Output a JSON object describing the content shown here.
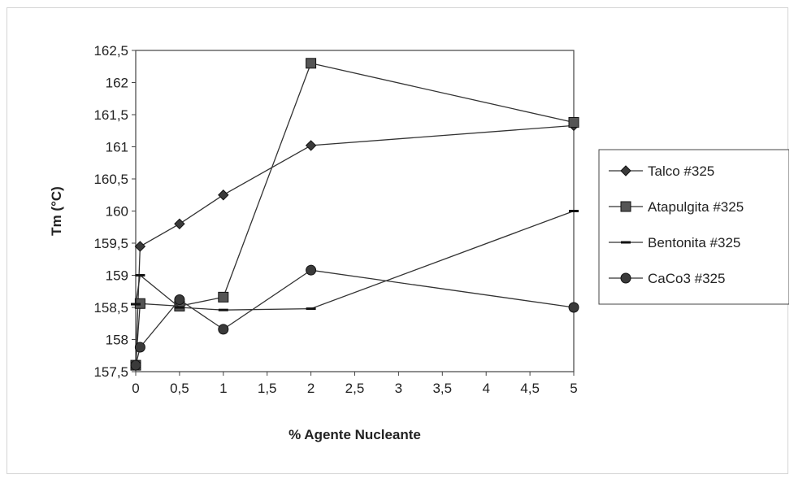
{
  "chart_data": {
    "type": "line",
    "title": "",
    "xlabel": "% Agente Nucleante",
    "ylabel": "Tm (°C)",
    "ylim": [
      157.5,
      162.5
    ],
    "y_ticks": [
      "157,5",
      "158",
      "158,5",
      "159",
      "159,5",
      "160",
      "160,5",
      "161",
      "161,5",
      "162",
      "162,5"
    ],
    "x_ticks": [
      "0",
      "0,5",
      "1",
      "1,5",
      "2",
      "2,5",
      "3",
      "3,5",
      "4",
      "4,5",
      "5"
    ],
    "grid": false,
    "legend_position": "right",
    "series": [
      {
        "name": "Talco #325",
        "marker": "diamond",
        "color": "#3a3a3a",
        "x": [
          0,
          0.05,
          0.5,
          1,
          2,
          5
        ],
        "y": [
          157.6,
          159.45,
          159.8,
          160.25,
          161.02,
          161.33
        ]
      },
      {
        "name": "Atapulgita #325",
        "marker": "square",
        "color": "#555555",
        "x": [
          0,
          0.05,
          0.5,
          1,
          2,
          5
        ],
        "y": [
          157.6,
          158.56,
          158.52,
          158.66,
          162.3,
          161.38
        ]
      },
      {
        "name": "Bentonita #325",
        "marker": "dash",
        "color": "#3a3a3a",
        "x": [
          0,
          0.05,
          0.5,
          1,
          2,
          5
        ],
        "y": [
          158.55,
          159.0,
          158.5,
          158.46,
          158.48,
          160.0
        ]
      },
      {
        "name": "CaCo3 #325",
        "marker": "circle",
        "color": "#3a3a3a",
        "x": [
          0,
          0.05,
          0.5,
          1,
          2,
          5
        ],
        "y": [
          157.6,
          157.88,
          158.62,
          158.16,
          159.08,
          158.5
        ]
      }
    ]
  }
}
